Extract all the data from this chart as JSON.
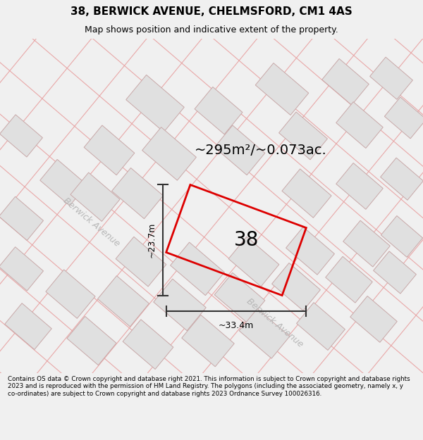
{
  "title": "38, BERWICK AVENUE, CHELMSFORD, CM1 4AS",
  "subtitle": "Map shows position and indicative extent of the property.",
  "footer": "Contains OS data © Crown copyright and database right 2021. This information is subject to Crown copyright and database rights 2023 and is reproduced with the permission of HM Land Registry. The polygons (including the associated geometry, namely x, y co-ordinates) are subject to Crown copyright and database rights 2023 Ordnance Survey 100026316.",
  "area_text": "~295m²/~0.073ac.",
  "property_number": "38",
  "dim_width": "~33.4m",
  "dim_height": "~23.7m",
  "road_label": "Berwick Avenue",
  "bg_color": "#f0f0f0",
  "map_bg": "#ffffff",
  "plot_color": "#dd0000",
  "road_color": "#e8a0a0",
  "block_color": "#e0e0e0",
  "block_outline": "#c8a8a8"
}
